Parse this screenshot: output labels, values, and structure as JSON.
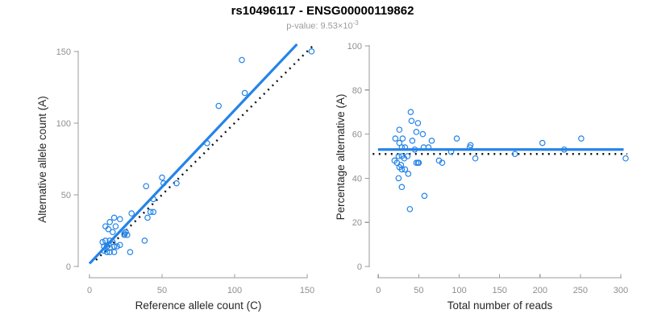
{
  "header": {
    "title": "rs10496117 - ENSG00000119862",
    "subtitle_prefix": "p-value: 9.53×10",
    "subtitle_exponent": "-3"
  },
  "colors": {
    "accent_blue": "#2484e8",
    "dotted_line_black": "#111111",
    "axis_gray": "#9b9b9b",
    "tick_label_gray": "#8f8f8f",
    "axis_title_dark": "#262626",
    "title_black": "#000000",
    "subtitle_gray": "#9b9b9b",
    "background": "#ffffff"
  },
  "chart_data": [
    {
      "type": "scatter",
      "xlabel": "Reference allele count (C)",
      "ylabel": "Alternative allele count (A)",
      "xlim": [
        0,
        155
      ],
      "ylim": [
        0,
        155
      ],
      "xticks": [
        0,
        50,
        100,
        150
      ],
      "yticks": [
        0,
        50,
        100,
        150
      ],
      "grid": false,
      "legend": "none",
      "marker": "open-circle",
      "points": [
        [
          9,
          17
        ],
        [
          10,
          11
        ],
        [
          10,
          14
        ],
        [
          11,
          18
        ],
        [
          11,
          28
        ],
        [
          12,
          10
        ],
        [
          12,
          14
        ],
        [
          13,
          26
        ],
        [
          14,
          10
        ],
        [
          14,
          13
        ],
        [
          14,
          18
        ],
        [
          14,
          31
        ],
        [
          16,
          17
        ],
        [
          16,
          24
        ],
        [
          17,
          10
        ],
        [
          17,
          14
        ],
        [
          17,
          34
        ],
        [
          18,
          28
        ],
        [
          19,
          14
        ],
        [
          21,
          15
        ],
        [
          21,
          33
        ],
        [
          24,
          22
        ],
        [
          24,
          23
        ],
        [
          25,
          24
        ],
        [
          26,
          22
        ],
        [
          28,
          10
        ],
        [
          29,
          37
        ],
        [
          38,
          18
        ],
        [
          39,
          56
        ],
        [
          40,
          34
        ],
        [
          42,
          38
        ],
        [
          44,
          38
        ],
        [
          44,
          47
        ],
        [
          50,
          62
        ],
        [
          51,
          58
        ],
        [
          60,
          58
        ],
        [
          81,
          86
        ],
        [
          89,
          112
        ],
        [
          105,
          144
        ],
        [
          107,
          121
        ],
        [
          153,
          150
        ]
      ],
      "fit_line": {
        "slope": 1.07,
        "intercept": 2,
        "style": "solid",
        "color_role": "accent_blue"
      },
      "identity_line": {
        "slope": 1,
        "intercept": 0,
        "style": "dotted",
        "color_role": "dotted_line_black"
      }
    },
    {
      "type": "scatter",
      "xlabel": "Total number of reads",
      "ylabel": "Percentage alternative (A)",
      "xlim": [
        0,
        310
      ],
      "ylim": [
        0,
        100
      ],
      "xticks": [
        0,
        50,
        100,
        150,
        200,
        250,
        300
      ],
      "yticks": [
        0,
        20,
        40,
        60,
        80,
        100
      ],
      "grid": false,
      "legend": "none",
      "marker": "open-circle",
      "points": [
        [
          20,
          48
        ],
        [
          21,
          58
        ],
        [
          23,
          47
        ],
        [
          25,
          40
        ],
        [
          25,
          50
        ],
        [
          26,
          45
        ],
        [
          26,
          56
        ],
        [
          26,
          62
        ],
        [
          28,
          46
        ],
        [
          29,
          36
        ],
        [
          29,
          44
        ],
        [
          29,
          50
        ],
        [
          29,
          54
        ],
        [
          30,
          58
        ],
        [
          32,
          49
        ],
        [
          33,
          44
        ],
        [
          33,
          54
        ],
        [
          36,
          50
        ],
        [
          37,
          42
        ],
        [
          39,
          26
        ],
        [
          40,
          70
        ],
        [
          41,
          66
        ],
        [
          42,
          57
        ],
        [
          45,
          53
        ],
        [
          47,
          47
        ],
        [
          47,
          61
        ],
        [
          49,
          47
        ],
        [
          49,
          65
        ],
        [
          50,
          47
        ],
        [
          55,
          60
        ],
        [
          56,
          54
        ],
        [
          57,
          32
        ],
        [
          62,
          54
        ],
        [
          66,
          57
        ],
        [
          75,
          48
        ],
        [
          79,
          47
        ],
        [
          90,
          52
        ],
        [
          97,
          58
        ],
        [
          113,
          54
        ],
        [
          114,
          55
        ],
        [
          120,
          49
        ],
        [
          169,
          51
        ],
        [
          203,
          56
        ],
        [
          230,
          53
        ],
        [
          251,
          58
        ],
        [
          306,
          49
        ]
      ],
      "fit_line": {
        "y": 53,
        "style": "solid",
        "color_role": "accent_blue"
      },
      "reference_line": {
        "y": 51,
        "style": "dotted",
        "color_role": "dotted_line_black"
      }
    }
  ]
}
